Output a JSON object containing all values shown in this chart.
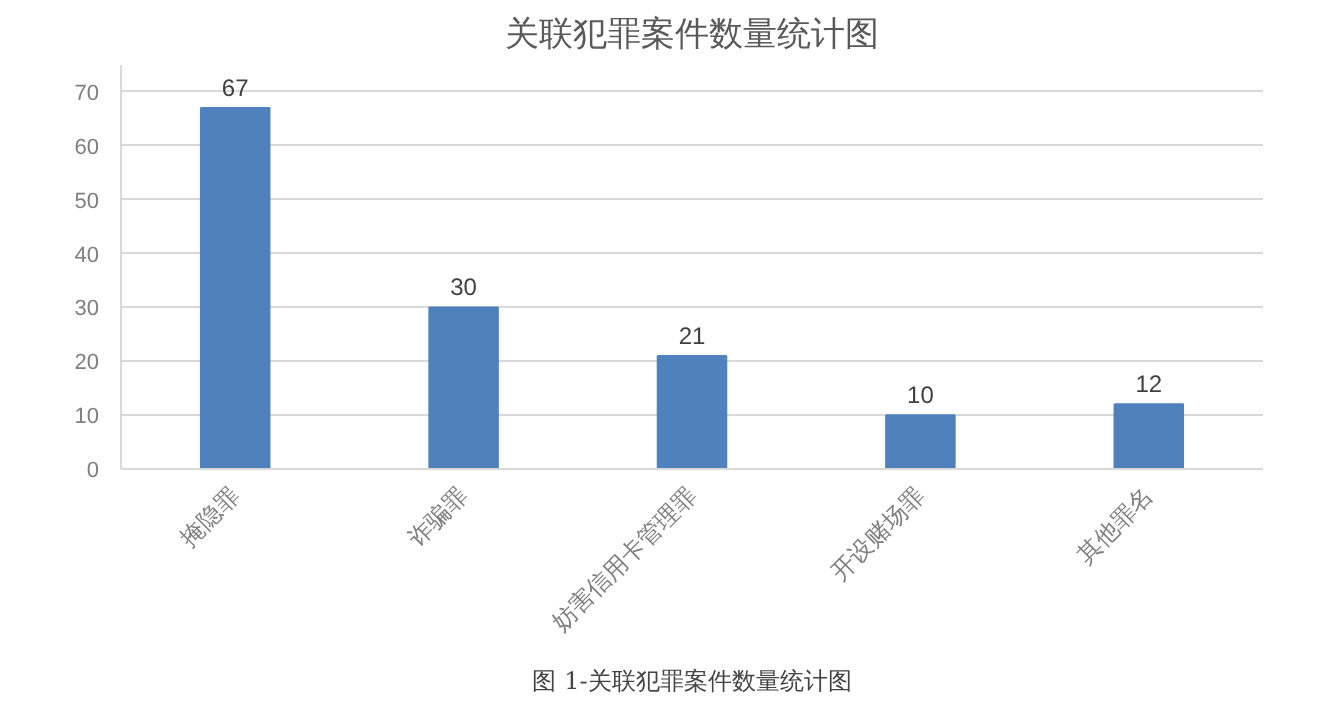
{
  "chart_data": {
    "type": "bar",
    "title": "关联犯罪案件数量统计图",
    "categories": [
      "掩隐罪",
      "诈骗罪",
      "妨害信用卡管理罪",
      "开设赌场罪",
      "其他罪名"
    ],
    "values": [
      67,
      30,
      21,
      10,
      12
    ],
    "color": "#4f81bd",
    "ylim": [
      0,
      75
    ],
    "yticks": [
      0,
      10,
      20,
      30,
      40,
      50,
      60,
      70
    ],
    "grid": "y",
    "data_labels": true,
    "annotations": [
      "图 1-关联犯罪案件数量统计图"
    ]
  }
}
